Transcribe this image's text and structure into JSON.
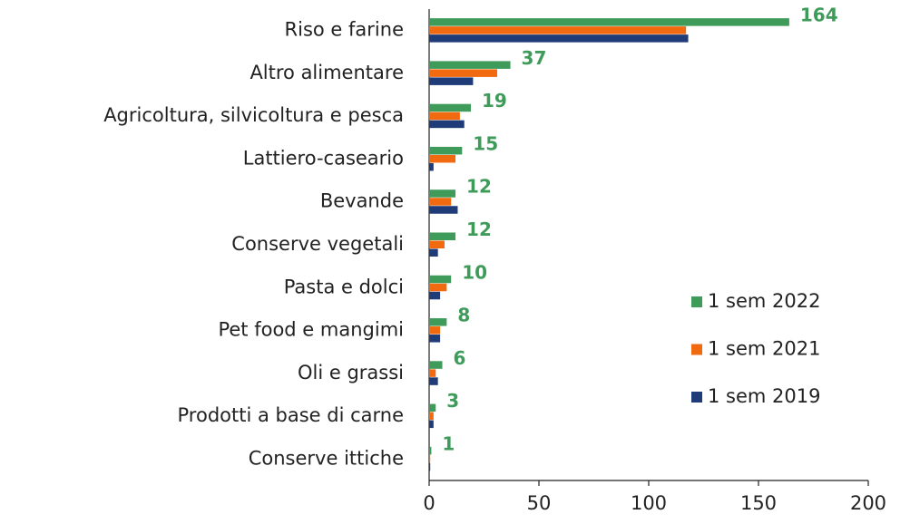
{
  "chart_data": {
    "type": "bar",
    "orientation": "horizontal",
    "categories": [
      "Riso e farine",
      "Altro alimentare",
      "Agricoltura, silvicoltura e pesca",
      "Lattiero-caseario",
      "Bevande",
      "Conserve vegetali",
      "Pasta e dolci",
      "Pet food e mangimi",
      "Oli e grassi",
      "Prodotti a base di carne",
      "Conserve ittiche"
    ],
    "series": [
      {
        "name": "1 sem 2022",
        "color": "#3f9b5a",
        "values": [
          164,
          37,
          19,
          15,
          12,
          12,
          10,
          8,
          6,
          3,
          1
        ],
        "data_labels": true
      },
      {
        "name": "1 sem 2021",
        "color": "#f26a10",
        "values": [
          117,
          31,
          14,
          12,
          10,
          7,
          8,
          5,
          3,
          2,
          0.5
        ]
      },
      {
        "name": "1 sem 2019",
        "color": "#1f3c78",
        "values": [
          118,
          20,
          16,
          2,
          13,
          4,
          5,
          5,
          4,
          2,
          0.5
        ]
      }
    ],
    "xlim": [
      0,
      200
    ],
    "xticks": [
      0,
      50,
      100,
      150,
      200
    ],
    "grid": false,
    "legend": "right"
  }
}
